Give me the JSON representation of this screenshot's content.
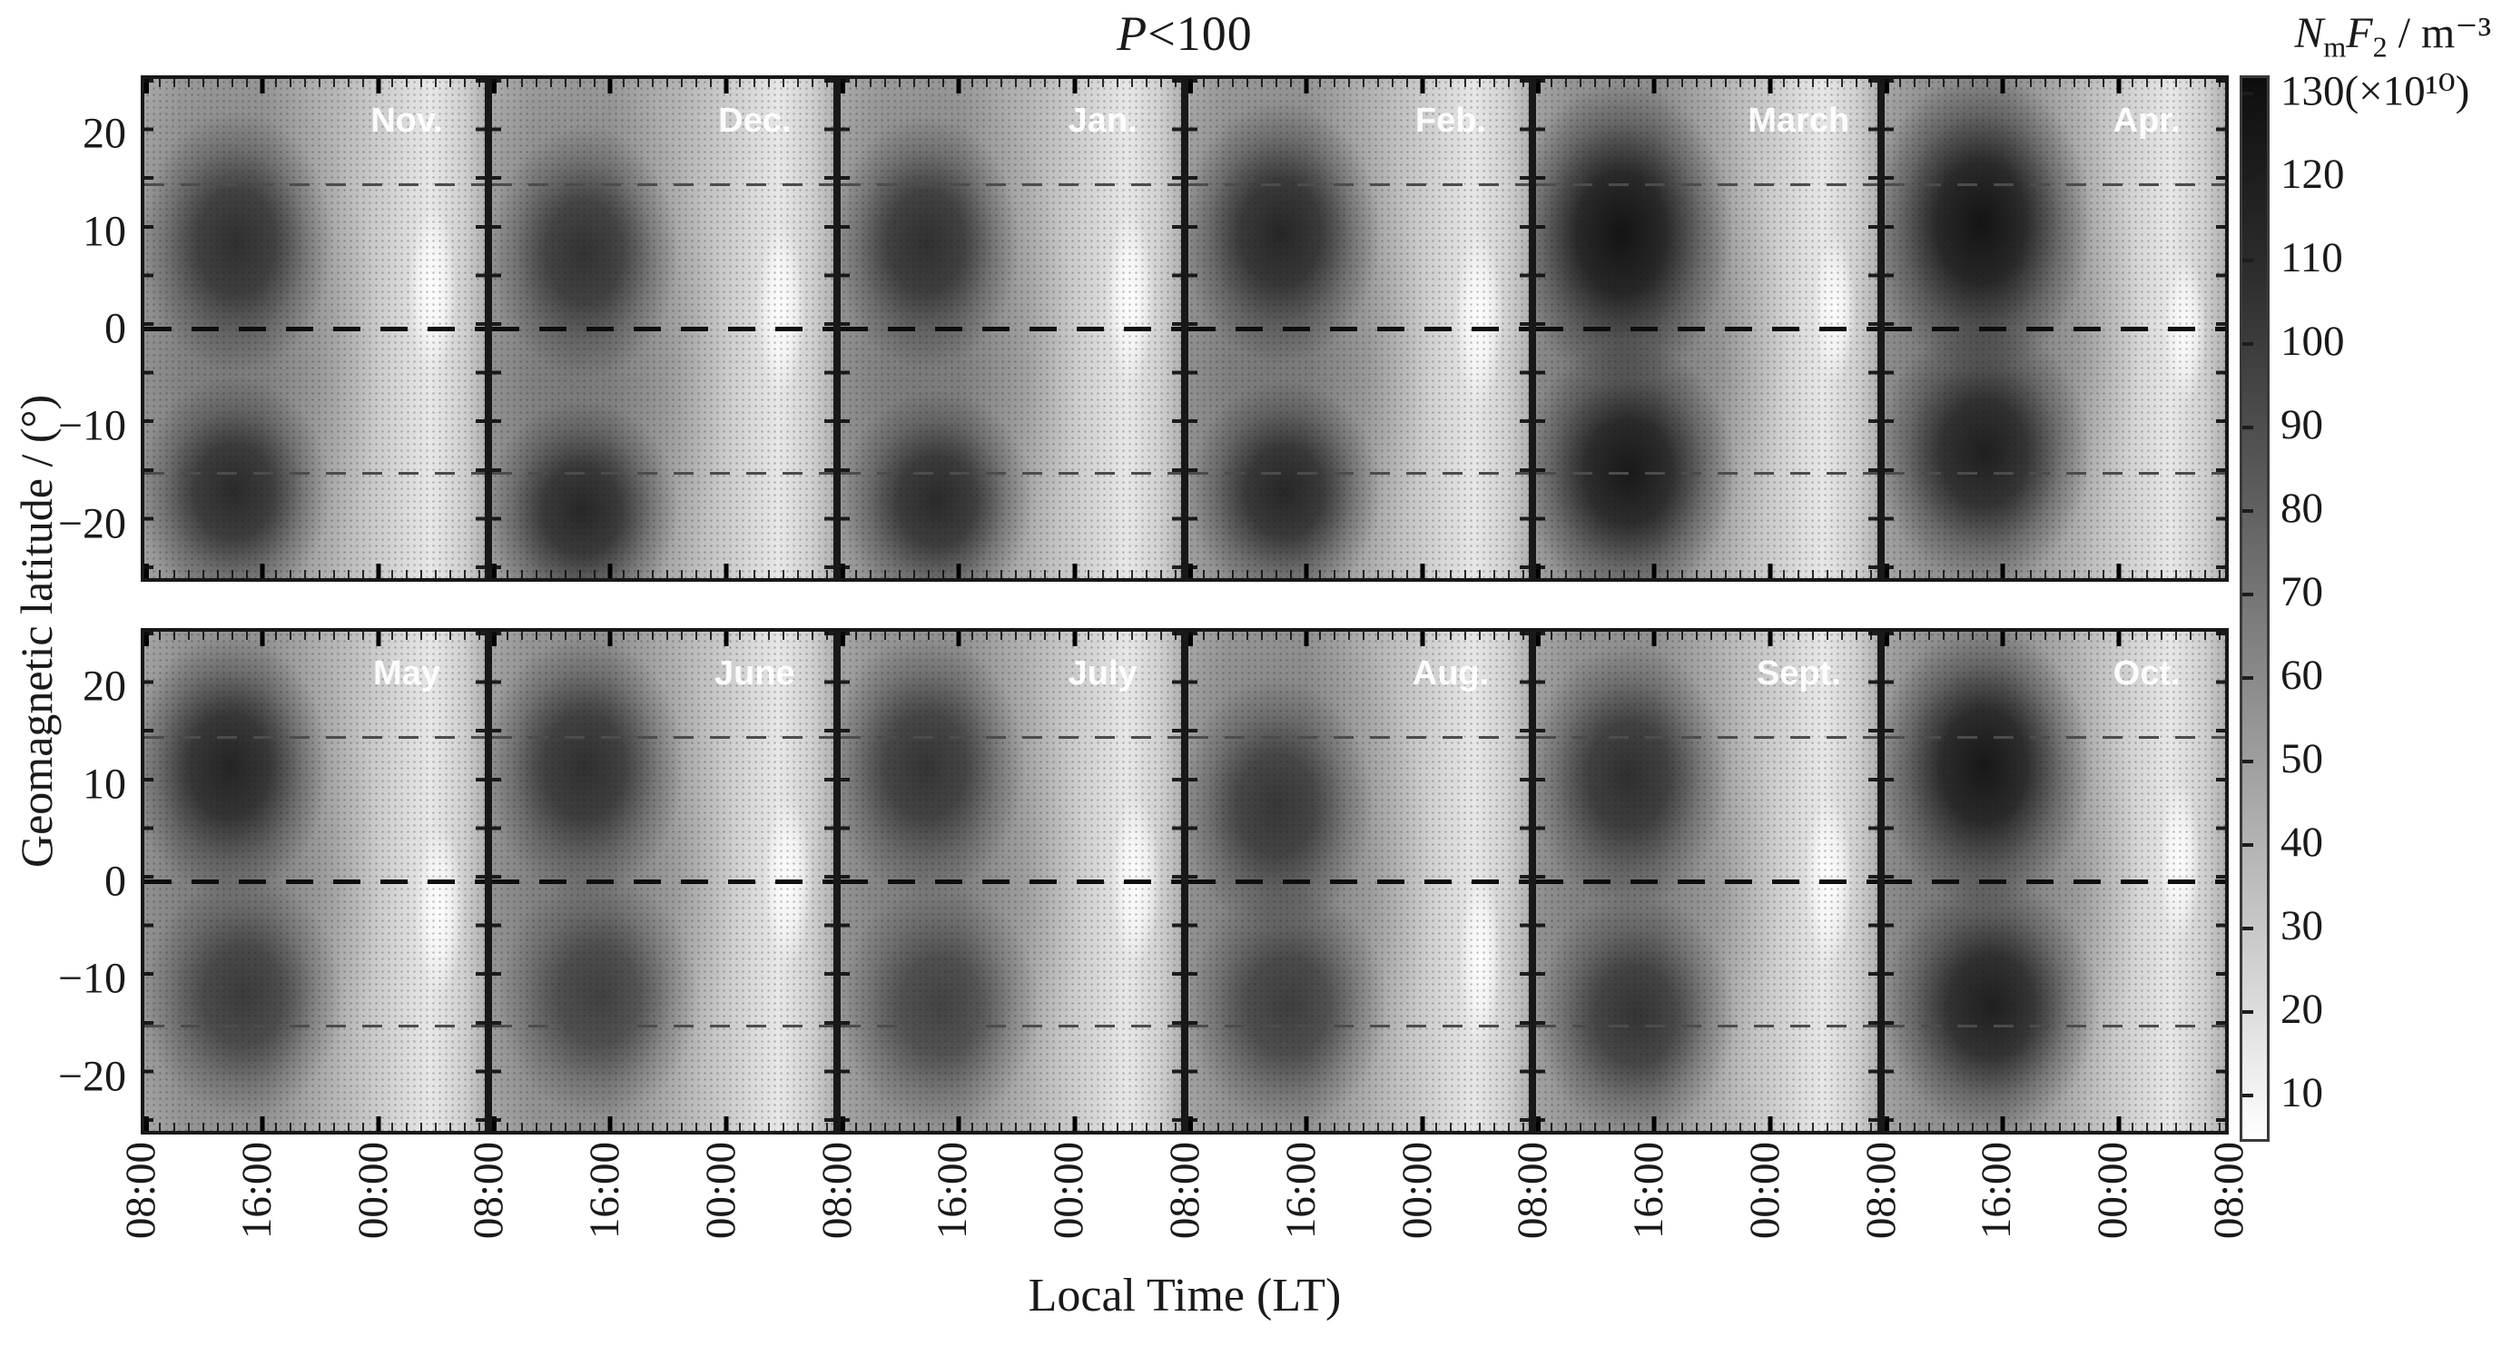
{
  "chart_data": {
    "type": "heatmap",
    "title": "P<100",
    "title_var": "P",
    "title_rest": "<100",
    "xlabel": "Local Time (LT)",
    "ylabel": "Geomagnetic latitude / (°)",
    "colorbar": {
      "label_n": "N",
      "label_n_sub": "m",
      "label_f": "F",
      "label_f_sub": "2",
      "label_unit": " / m⁻³",
      "full_label": "NmF2 / m⁻³",
      "tick_labels": [
        "130(×10¹⁰)",
        "120",
        "110",
        "100",
        "90",
        "80",
        "70",
        "60",
        "50",
        "40",
        "30",
        "20",
        "10"
      ],
      "value_range": [
        10,
        130
      ],
      "multiplier": "×10¹⁰"
    },
    "x_tick_labels": [
      "08:00",
      "16:00",
      "00:00",
      "08:00",
      "16:00",
      "00:00",
      "08:00",
      "16:00",
      "00:00",
      "08:00",
      "16:00",
      "00:00",
      "08:00",
      "16:00",
      "00:00",
      "08:00",
      "16:00",
      "00:00",
      "08:00"
    ],
    "y_tick_labels": [
      "20",
      "10",
      "0",
      "−10",
      "−20"
    ],
    "y_tick_values": [
      20,
      10,
      0,
      -10,
      -20
    ],
    "lat_range": [
      -26,
      26
    ],
    "lt_range_hours": [
      8,
      32
    ],
    "dashed_latitudes": [
      15,
      0,
      -15
    ],
    "grid": "dashed horizontal lines at +15, 0, -15 degrees",
    "legend_position": "colorbar right",
    "rows": [
      [
        "Nov.",
        "Dec.",
        "Jan.",
        "Feb.",
        "March",
        "Apr."
      ],
      [
        "May",
        "June",
        "July",
        "Aug.",
        "Sept.",
        "Oct."
      ]
    ],
    "months": [
      {
        "label": "Nov.",
        "peaks": [
          {
            "lat": 9,
            "lt": 14.5,
            "v": 103,
            "rx": 0.28,
            "ry": 0.26
          },
          {
            "lat": -17,
            "lt": 14.3,
            "v": 108,
            "rx": 0.28,
            "ry": 0.23
          }
        ],
        "envelope": {
          "lat": -3,
          "lt": 13.5,
          "v": 78,
          "rx": 0.46,
          "ry": 0.62
        },
        "minimum": {
          "lat": 4,
          "lt": 4.3,
          "v": 12,
          "rx": 0.07,
          "ry": 0.17
        }
      },
      {
        "label": "Dec.",
        "peaks": [
          {
            "lat": 8,
            "lt": 14.5,
            "v": 100,
            "rx": 0.27,
            "ry": 0.25
          },
          {
            "lat": -19,
            "lt": 14.3,
            "v": 110,
            "rx": 0.28,
            "ry": 0.22
          }
        ],
        "envelope": {
          "lat": -5,
          "lt": 13.5,
          "v": 80,
          "rx": 0.46,
          "ry": 0.62
        },
        "minimum": {
          "lat": 2,
          "lt": 4.3,
          "v": 12,
          "rx": 0.07,
          "ry": 0.17
        }
      },
      {
        "label": "Jan.",
        "peaks": [
          {
            "lat": 9,
            "lt": 14.0,
            "v": 103,
            "rx": 0.27,
            "ry": 0.25
          },
          {
            "lat": -18,
            "lt": 14.8,
            "v": 108,
            "rx": 0.28,
            "ry": 0.22
          }
        ],
        "envelope": {
          "lat": -4,
          "lt": 13.5,
          "v": 80,
          "rx": 0.46,
          "ry": 0.62
        },
        "minimum": {
          "lat": 3,
          "lt": 4.4,
          "v": 12,
          "rx": 0.07,
          "ry": 0.17
        }
      },
      {
        "label": "Feb.",
        "peaks": [
          {
            "lat": 10,
            "lt": 14.5,
            "v": 110,
            "rx": 0.29,
            "ry": 0.26
          },
          {
            "lat": -17,
            "lt": 14.8,
            "v": 110,
            "rx": 0.28,
            "ry": 0.22
          }
        ],
        "envelope": {
          "lat": -3,
          "lt": 13.8,
          "v": 84,
          "rx": 0.46,
          "ry": 0.62
        },
        "minimum": {
          "lat": 1,
          "lt": 4.5,
          "v": 14,
          "rx": 0.07,
          "ry": 0.17
        }
      },
      {
        "label": "March",
        "peaks": [
          {
            "lat": 10,
            "lt": 14.0,
            "v": 127,
            "rx": 0.32,
            "ry": 0.3
          },
          {
            "lat": -15,
            "lt": 14.5,
            "v": 122,
            "rx": 0.31,
            "ry": 0.26
          }
        ],
        "envelope": {
          "lat": -2,
          "lt": 14.0,
          "v": 95,
          "rx": 0.48,
          "ry": 0.64
        },
        "minimum": {
          "lat": 2,
          "lt": 5.0,
          "v": 16,
          "rx": 0.06,
          "ry": 0.15
        }
      },
      {
        "label": "Apr.",
        "peaks": [
          {
            "lat": 11,
            "lt": 14.8,
            "v": 127,
            "rx": 0.32,
            "ry": 0.3
          },
          {
            "lat": -13,
            "lt": 15.0,
            "v": 116,
            "rx": 0.31,
            "ry": 0.26
          }
        ],
        "envelope": {
          "lat": 0,
          "lt": 14.6,
          "v": 92,
          "rx": 0.47,
          "ry": 0.62
        },
        "minimum": {
          "lat": 0,
          "lt": 5.2,
          "v": 16,
          "rx": 0.06,
          "ry": 0.15
        }
      },
      {
        "label": "May",
        "peaks": [
          {
            "lat": 12,
            "lt": 14.0,
            "v": 113,
            "rx": 0.29,
            "ry": 0.26
          },
          {
            "lat": -12,
            "lt": 15.0,
            "v": 92,
            "rx": 0.29,
            "ry": 0.24
          }
        ],
        "envelope": {
          "lat": 0,
          "lt": 13.5,
          "v": 80,
          "rx": 0.46,
          "ry": 0.6
        },
        "minimum": {
          "lat": -3,
          "lt": 4.8,
          "v": 14,
          "rx": 0.07,
          "ry": 0.17
        }
      },
      {
        "label": "June",
        "peaks": [
          {
            "lat": 12,
            "lt": 14.5,
            "v": 103,
            "rx": 0.29,
            "ry": 0.26
          },
          {
            "lat": -12,
            "lt": 15.5,
            "v": 88,
            "rx": 0.29,
            "ry": 0.24
          }
        ],
        "envelope": {
          "lat": 0,
          "lt": 14.0,
          "v": 78,
          "rx": 0.46,
          "ry": 0.6
        },
        "minimum": {
          "lat": 0,
          "lt": 4.8,
          "v": 12,
          "rx": 0.07,
          "ry": 0.17
        }
      },
      {
        "label": "July",
        "peaks": [
          {
            "lat": 12,
            "lt": 14.0,
            "v": 99,
            "rx": 0.29,
            "ry": 0.26
          },
          {
            "lat": -13,
            "lt": 15.0,
            "v": 86,
            "rx": 0.29,
            "ry": 0.24
          }
        ],
        "envelope": {
          "lat": 0,
          "lt": 14.0,
          "v": 76,
          "rx": 0.46,
          "ry": 0.6
        },
        "minimum": {
          "lat": 0,
          "lt": 4.8,
          "v": 12,
          "rx": 0.07,
          "ry": 0.17
        }
      },
      {
        "label": "Aug.",
        "peaks": [
          {
            "lat": 8,
            "lt": 14.2,
            "v": 96,
            "rx": 0.28,
            "ry": 0.25
          },
          {
            "lat": -13,
            "lt": 15.0,
            "v": 90,
            "rx": 0.29,
            "ry": 0.24
          }
        ],
        "envelope": {
          "lat": 0,
          "lt": 14.0,
          "v": 78,
          "rx": 0.46,
          "ry": 0.6
        },
        "minimum": {
          "lat": -8,
          "lt": 4.6,
          "v": 13,
          "rx": 0.06,
          "ry": 0.18
        }
      },
      {
        "label": "Sept.",
        "peaks": [
          {
            "lat": 11,
            "lt": 14.5,
            "v": 103,
            "rx": 0.29,
            "ry": 0.26
          },
          {
            "lat": -14,
            "lt": 15.0,
            "v": 99,
            "rx": 0.29,
            "ry": 0.24
          }
        ],
        "envelope": {
          "lat": 0,
          "lt": 14.0,
          "v": 80,
          "rx": 0.46,
          "ry": 0.6
        },
        "minimum": {
          "lat": 0,
          "lt": 4.6,
          "v": 13,
          "rx": 0.07,
          "ry": 0.17
        }
      },
      {
        "label": "Oct.",
        "peaks": [
          {
            "lat": 12,
            "lt": 15.0,
            "v": 123,
            "rx": 0.31,
            "ry": 0.28
          },
          {
            "lat": -13,
            "lt": 15.5,
            "v": 116,
            "rx": 0.31,
            "ry": 0.25
          }
        ],
        "envelope": {
          "lat": 0,
          "lt": 14.5,
          "v": 90,
          "rx": 0.47,
          "ry": 0.62
        },
        "minimum": {
          "lat": 2,
          "lt": 4.8,
          "v": 14,
          "rx": 0.06,
          "ry": 0.16
        }
      }
    ]
  }
}
